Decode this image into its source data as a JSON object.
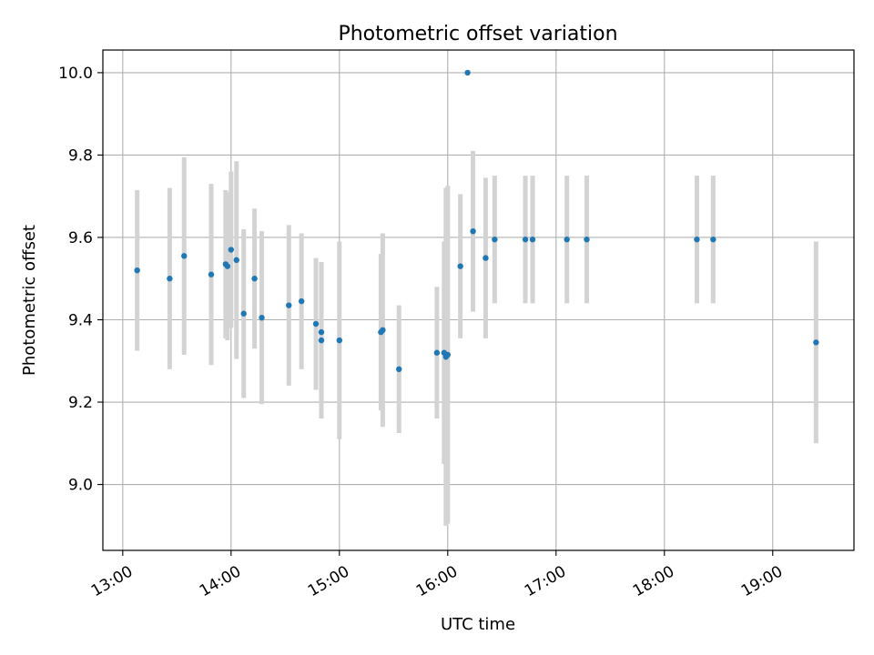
{
  "chart_data": {
    "type": "scatter",
    "title": "Photometric offset variation",
    "xlabel": "UTC time",
    "ylabel": "Photometric offset",
    "xlim": [
      "12:49",
      "19:45"
    ],
    "ylim": [
      8.84,
      10.055
    ],
    "x_ticks": [
      "13:00",
      "14:00",
      "15:00",
      "16:00",
      "17:00",
      "18:00",
      "19:00"
    ],
    "y_ticks": [
      "9.0",
      "9.2",
      "9.4",
      "9.6",
      "9.8",
      "10.0"
    ],
    "grid": true,
    "colors": {
      "points": "#1f77b4",
      "errorbars": "#d3d3d3",
      "grid": "#b0b0b0"
    },
    "series": [
      {
        "points": [
          {
            "x": "13:08",
            "y": 9.52,
            "yerr": 0.195
          },
          {
            "x": "13:26",
            "y": 9.5,
            "yerr": 0.22
          },
          {
            "x": "13:34",
            "y": 9.555,
            "yerr": 0.24
          },
          {
            "x": "13:49",
            "y": 9.51,
            "yerr": 0.22
          },
          {
            "x": "13:57",
            "y": 9.535,
            "yerr": 0.18
          },
          {
            "x": "13:58",
            "y": 9.53,
            "yerr": 0.18
          },
          {
            "x": "14:00",
            "y": 9.57,
            "yerr": 0.19
          },
          {
            "x": "14:03",
            "y": 9.545,
            "yerr": 0.24
          },
          {
            "x": "14:07",
            "y": 9.415,
            "yerr": 0.205
          },
          {
            "x": "14:13",
            "y": 9.5,
            "yerr": 0.17
          },
          {
            "x": "14:17",
            "y": 9.405,
            "yerr": 0.21
          },
          {
            "x": "14:32",
            "y": 9.435,
            "yerr": 0.195
          },
          {
            "x": "14:39",
            "y": 9.445,
            "yerr": 0.165
          },
          {
            "x": "14:47",
            "y": 9.39,
            "yerr": 0.16
          },
          {
            "x": "14:50",
            "y": 9.35,
            "yerr": 0.19
          },
          {
            "x": "14:50",
            "y": 9.37,
            "yerr": 0.17
          },
          {
            "x": "15:00",
            "y": 9.35,
            "yerr": 0.24
          },
          {
            "x": "15:23",
            "y": 9.37,
            "yerr": 0.19
          },
          {
            "x": "15:24",
            "y": 9.375,
            "yerr": 0.235
          },
          {
            "x": "15:33",
            "y": 9.28,
            "yerr": 0.155
          },
          {
            "x": "15:54",
            "y": 9.32,
            "yerr": 0.16
          },
          {
            "x": "15:58",
            "y": 9.32,
            "yerr": 0.27
          },
          {
            "x": "15:59",
            "y": 9.31,
            "yerr": 0.41
          },
          {
            "x": "16:00",
            "y": 9.315,
            "yerr": 0.41
          },
          {
            "x": "16:07",
            "y": 9.53,
            "yerr": 0.175
          },
          {
            "x": "16:11",
            "y": 10.0,
            "yerr": 0.0
          },
          {
            "x": "16:14",
            "y": 9.615,
            "yerr": 0.195
          },
          {
            "x": "16:21",
            "y": 9.55,
            "yerr": 0.195
          },
          {
            "x": "16:26",
            "y": 9.595,
            "yerr": 0.155
          },
          {
            "x": "16:43",
            "y": 9.595,
            "yerr": 0.155
          },
          {
            "x": "16:47",
            "y": 9.595,
            "yerr": 0.155
          },
          {
            "x": "17:06",
            "y": 9.595,
            "yerr": 0.155
          },
          {
            "x": "17:17",
            "y": 9.595,
            "yerr": 0.155
          },
          {
            "x": "18:18",
            "y": 9.595,
            "yerr": 0.155
          },
          {
            "x": "18:27",
            "y": 9.595,
            "yerr": 0.155
          },
          {
            "x": "19:24",
            "y": 9.345,
            "yerr": 0.245
          }
        ]
      }
    ]
  }
}
